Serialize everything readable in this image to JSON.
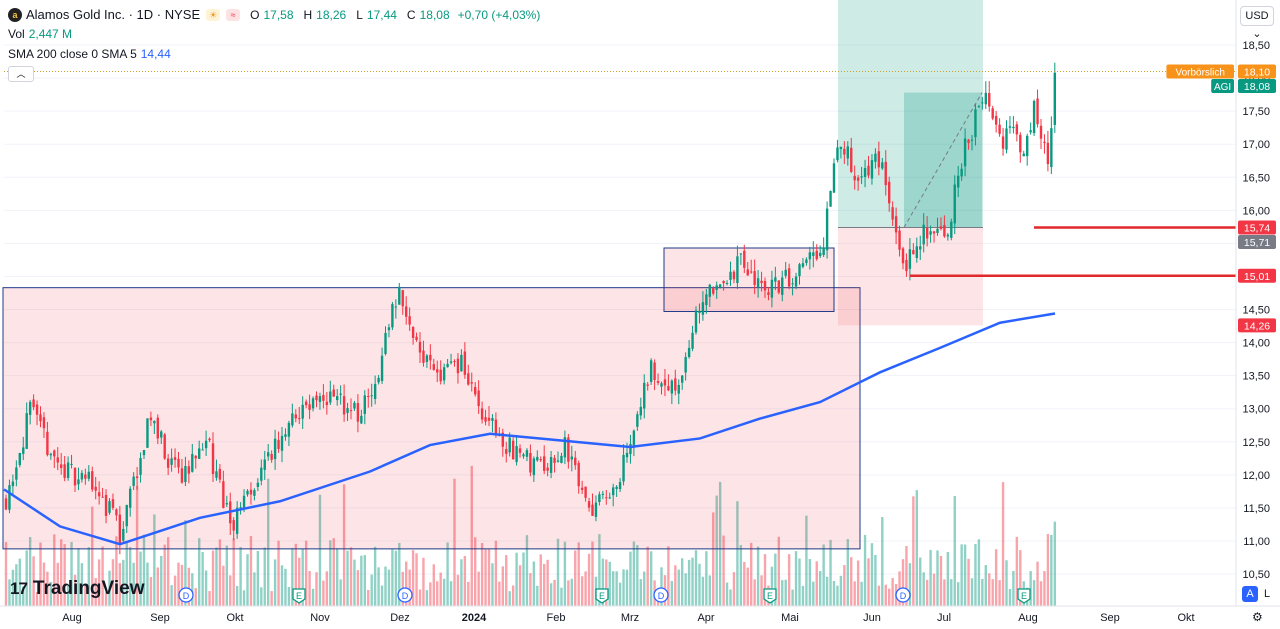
{
  "header": {
    "logo_letter": "a",
    "title": "Alamos Gold Inc. · 1D · NYSE",
    "ohlc": [
      {
        "k": "O",
        "v": "17,58"
      },
      {
        "k": "H",
        "v": "18,26"
      },
      {
        "k": "L",
        "v": "17,44"
      },
      {
        "k": "C",
        "v": "18,08"
      }
    ],
    "change": "+0,70 (+4,03%)",
    "vol_label": "Vol",
    "vol_value": "2,447 M",
    "sma_label": "SMA 200 close 0 SMA 5",
    "sma_value": "14,44",
    "collapse_icon": "chevron-up-icon",
    "currency": "USD",
    "icons": [
      "sun-icon",
      "wave-icon",
      "chevron-down-icon"
    ]
  },
  "brand": {
    "text": "TradingView",
    "mark": "17"
  },
  "corner": {
    "auto": "A",
    "log": "L",
    "settings_icon": "gear-icon"
  },
  "colors": {
    "up": "#089981",
    "down": "#f23645",
    "sma": "#2962ff",
    "zone_pink": "rgba(242,54,69,0.13)",
    "zone_green": "rgba(8,153,129,0.2)",
    "box_border": "#1e3a8a",
    "red_line": "#e0292b"
  },
  "chart_data": {
    "type": "candlestick",
    "x_labels": [
      "Aug",
      "Sep",
      "Okt",
      "Nov",
      "Dez",
      "2024",
      "Feb",
      "Mrz",
      "Apr",
      "Mai",
      "Jun",
      "Jul",
      "Aug",
      "Sep",
      "Okt"
    ],
    "y_ticks": [
      "18,50",
      "18,00",
      "17,50",
      "17,00",
      "16,50",
      "16,00",
      "15,50",
      "15,00",
      "14,50",
      "14,00",
      "13,50",
      "13,00",
      "12,50",
      "12,00",
      "11,50",
      "11,00",
      "10,50"
    ],
    "y_range": [
      10.35,
      18.75
    ],
    "price_badges": [
      {
        "label": "Vorbörslich",
        "value": "18,10",
        "color": "#f7931a"
      },
      {
        "label": "AGI",
        "value": "18,08",
        "color": "#089981"
      },
      {
        "label": "",
        "value": "15,74",
        "color": "#f23645"
      },
      {
        "label": "",
        "value": "15,71",
        "color": "#787b86"
      },
      {
        "label": "",
        "value": "15,01",
        "color": "#f23645"
      },
      {
        "label": "",
        "value": "14,26",
        "color": "#f23645"
      }
    ],
    "last_close": 18.08,
    "premarket": 18.1,
    "horizontal_levels": [
      15.74,
      15.01
    ],
    "sma_end": 14.44,
    "events": [
      {
        "letter": "D",
        "month": "Sep"
      },
      {
        "letter": "E",
        "month": "Nov"
      },
      {
        "letter": "D",
        "month": "Dez"
      },
      {
        "letter": "E",
        "month": "Feb"
      },
      {
        "letter": "D",
        "month": "Mrz"
      },
      {
        "letter": "E",
        "month": "Apr"
      },
      {
        "letter": "D",
        "month": "Jun"
      },
      {
        "letter": "E",
        "month": "Aug"
      }
    ],
    "zones": [
      {
        "type": "pink-box",
        "from": 10.88,
        "to": 14.83
      },
      {
        "type": "pink-box",
        "from": 14.47,
        "to": 15.43
      },
      {
        "type": "long-position-profit",
        "from": 15.74,
        "to": 18.75
      },
      {
        "type": "long-position-loss",
        "from": 14.26,
        "to": 15.74
      }
    ]
  }
}
